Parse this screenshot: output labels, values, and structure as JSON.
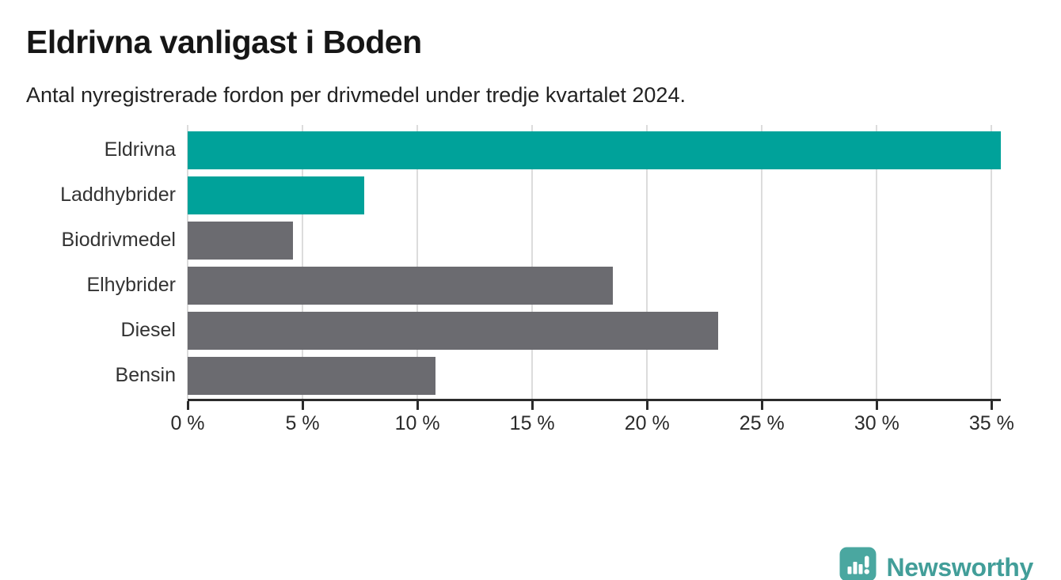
{
  "chart_data": {
    "type": "bar",
    "orientation": "horizontal",
    "title": "Eldrivna vanligast i Boden",
    "subtitle": "Antal nyregistrerade fordon per drivmedel under tredje kvartalet 2024.",
    "categories": [
      "Eldrivna",
      "Laddhybrider",
      "Biodrivmedel",
      "Elhybrider",
      "Diesel",
      "Bensin"
    ],
    "values": [
      35.4,
      7.7,
      4.6,
      18.5,
      23.1,
      10.8
    ],
    "bar_colors": [
      "#00a29a",
      "#00a29a",
      "#6b6b70",
      "#6b6b70",
      "#6b6b70",
      "#6b6b70"
    ],
    "xlabel": "",
    "ylabel": "",
    "xlim": [
      0,
      35.4
    ],
    "xticks": [
      0,
      5,
      10,
      15,
      20,
      25,
      30,
      35
    ],
    "xtick_labels": [
      "0 %",
      "5 %",
      "10 %",
      "15 %",
      "20 %",
      "25 %",
      "30 %",
      "35 %"
    ],
    "grid": "vertical",
    "legend": "none"
  },
  "palette": {
    "accent": "#00a29a",
    "neutral": "#6b6b70",
    "gridline": "#dcdcdc",
    "axis": "#2b2b2b"
  },
  "branding": {
    "logo_text": "Newsworthy",
    "logo_color": "#429e99",
    "logo_icon": "newsworthy-speech-bubble-chart-icon"
  }
}
